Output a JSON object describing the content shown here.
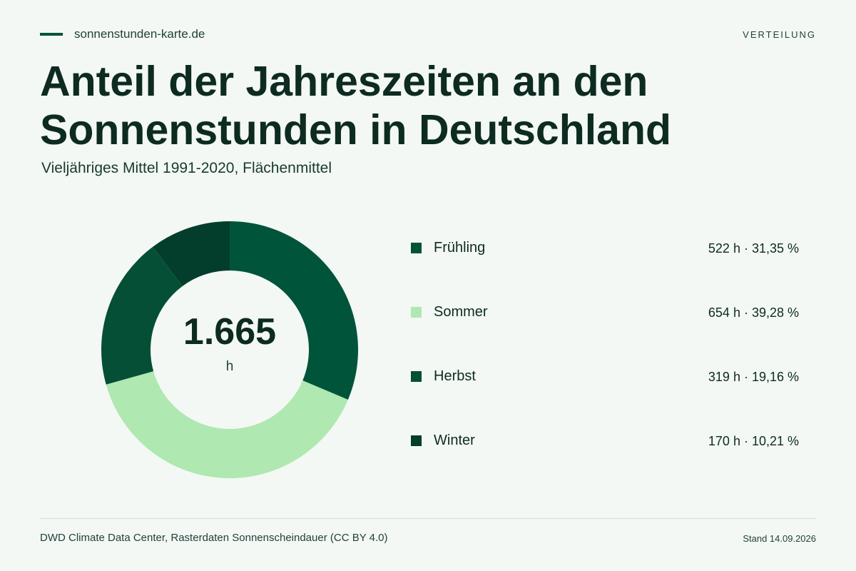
{
  "header": {
    "brand": "sonnenstunden-karte.de",
    "category": "VERTEILUNG",
    "accent_color": "#00543a"
  },
  "title": "Anteil der Jahreszeiten an den Sonnenstunden in Deutschland",
  "subtitle": "Vieljähriges Mittel 1991-2020, Flächenmittel",
  "chart_data": {
    "type": "pie",
    "variant": "donut",
    "center_value": "1.665",
    "center_unit": "h",
    "categories": [
      "Frühling",
      "Sommer",
      "Herbst",
      "Winter"
    ],
    "values": [
      522,
      654,
      319,
      170
    ],
    "value_unit": "h",
    "percents": [
      31.35,
      39.28,
      19.16,
      10.21
    ],
    "colors": [
      "#00543a",
      "#afe8b0",
      "#044f36",
      "#033d2b"
    ],
    "value_labels": [
      "522 h · 31,35 %",
      "654 h · 39,28 %",
      "319 h · 19,16 %",
      "170 h · 10,21 %"
    ],
    "legend_position": "right"
  },
  "footer": {
    "source": "DWD Climate Data Center, Rasterdaten Sonnenscheindauer (CC BY 4.0)",
    "date": "Stand 14.09.2026"
  }
}
